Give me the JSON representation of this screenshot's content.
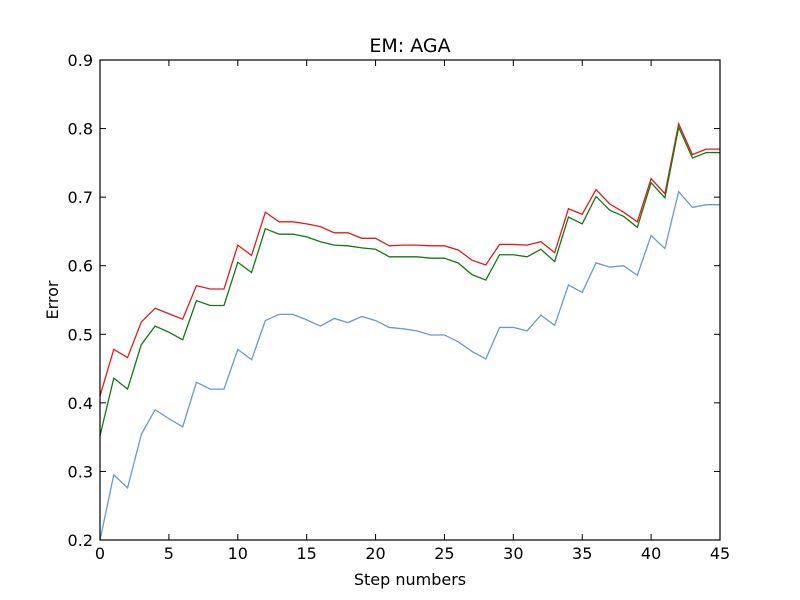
{
  "chart_data": {
    "type": "line",
    "title": "EM: AGA",
    "xlabel": "Step numbers",
    "ylabel": "Error",
    "xlim": [
      0,
      45
    ],
    "ylim": [
      0.2,
      0.9
    ],
    "xticks": [
      0,
      5,
      10,
      15,
      20,
      25,
      30,
      35,
      40,
      45
    ],
    "yticks": [
      0.2,
      0.3,
      0.4,
      0.5,
      0.6,
      0.7,
      0.8,
      0.9
    ],
    "xtick_labels": [
      "0",
      "5",
      "10",
      "15",
      "20",
      "25",
      "30",
      "35",
      "40",
      "45"
    ],
    "ytick_labels": [
      "0.2",
      "0.3",
      "0.4",
      "0.5",
      "0.6",
      "0.7",
      "0.8",
      "0.9"
    ],
    "grid": false,
    "legend": "none",
    "x": [
      0,
      1,
      2,
      3,
      4,
      5,
      6,
      7,
      8,
      9,
      10,
      11,
      12,
      13,
      14,
      15,
      16,
      17,
      18,
      19,
      20,
      21,
      22,
      23,
      24,
      25,
      26,
      27,
      28,
      29,
      30,
      31,
      32,
      33,
      34,
      35,
      36,
      37,
      38,
      39,
      40,
      41,
      42,
      43,
      44,
      45
    ],
    "series": [
      {
        "color": "#e31a1c",
        "values": [
          0.41,
          0.478,
          0.466,
          0.518,
          0.538,
          0.53,
          0.522,
          0.571,
          0.566,
          0.566,
          0.63,
          0.615,
          0.678,
          0.664,
          0.664,
          0.661,
          0.657,
          0.648,
          0.648,
          0.64,
          0.64,
          0.629,
          0.63,
          0.63,
          0.629,
          0.629,
          0.623,
          0.608,
          0.601,
          0.631,
          0.631,
          0.63,
          0.635,
          0.619,
          0.683,
          0.675,
          0.711,
          0.69,
          0.678,
          0.664,
          0.727,
          0.705,
          0.807,
          0.762,
          0.77,
          0.77
        ]
      },
      {
        "color": "#107a10",
        "values": [
          0.352,
          0.436,
          0.42,
          0.485,
          0.512,
          0.503,
          0.492,
          0.549,
          0.542,
          0.542,
          0.605,
          0.59,
          0.654,
          0.646,
          0.646,
          0.642,
          0.635,
          0.63,
          0.629,
          0.626,
          0.624,
          0.613,
          0.613,
          0.613,
          0.611,
          0.611,
          0.604,
          0.587,
          0.579,
          0.616,
          0.616,
          0.613,
          0.624,
          0.606,
          0.671,
          0.661,
          0.701,
          0.681,
          0.672,
          0.656,
          0.721,
          0.699,
          0.802,
          0.757,
          0.765,
          0.765
        ]
      },
      {
        "color": "#6699d6",
        "values": [
          0.2,
          0.295,
          0.276,
          0.354,
          0.39,
          0.377,
          0.365,
          0.43,
          0.42,
          0.42,
          0.478,
          0.463,
          0.52,
          0.529,
          0.529,
          0.521,
          0.512,
          0.523,
          0.517,
          0.526,
          0.52,
          0.51,
          0.508,
          0.505,
          0.499,
          0.499,
          0.489,
          0.475,
          0.464,
          0.51,
          0.51,
          0.505,
          0.528,
          0.513,
          0.572,
          0.561,
          0.604,
          0.598,
          0.6,
          0.586,
          0.644,
          0.625,
          0.708,
          0.685,
          0.689,
          0.689
        ]
      }
    ]
  }
}
